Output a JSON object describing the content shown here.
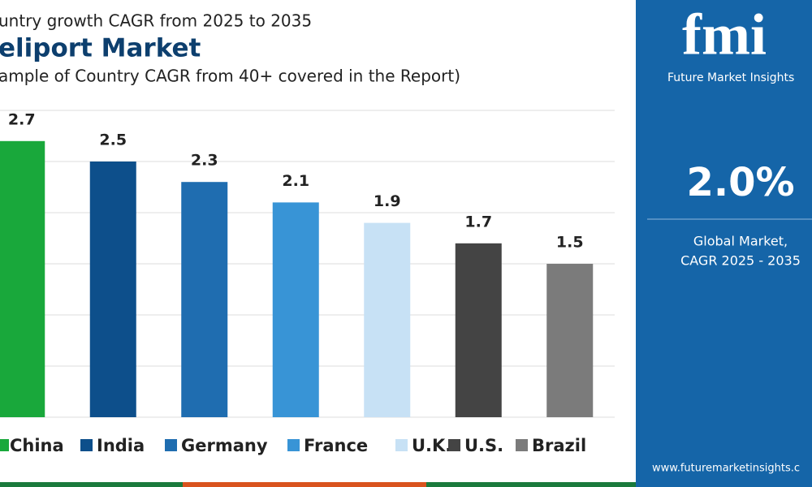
{
  "chart_data": {
    "type": "bar",
    "title": "eliport Market",
    "supertitle": "untry growth CAGR from 2025 to 2035",
    "subtitle": "ample of Country CAGR from 40+ covered in the Report)",
    "categories": [
      "China",
      "India",
      "Germany",
      "France",
      "U.K.",
      "U.S.",
      "Brazil"
    ],
    "values": [
      2.7,
      2.5,
      2.3,
      2.1,
      1.9,
      1.7,
      1.5
    ],
    "colors": [
      "#19a83b",
      "#0d4f8b",
      "#1f6db0",
      "#3894d6",
      "#c7e1f5",
      "#444444",
      "#7b7b7b"
    ],
    "ylim": [
      0,
      3
    ],
    "yticks": [
      0,
      0.5,
      1,
      1.5,
      2,
      2.5,
      3
    ],
    "grid": true,
    "side_panel": {
      "brand": "fmi",
      "brand_name": "Future Market Insights",
      "value": "2.0%",
      "caption_line1": "Global Market,",
      "caption_line2": "CAGR 2025 - 2035",
      "website": "www.futuremarketinsights.c"
    }
  }
}
